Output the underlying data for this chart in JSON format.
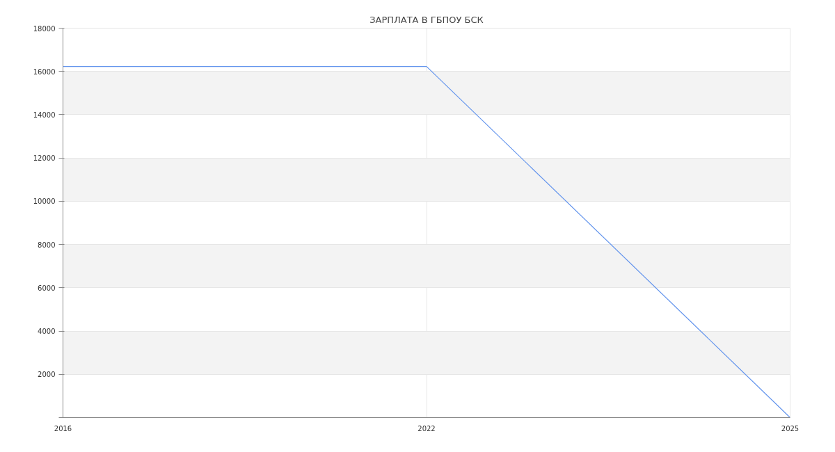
{
  "chart_data": {
    "type": "line",
    "title": "ЗАРПЛАТА В ГБПОУ БСК",
    "categories": [
      "2016",
      "2022",
      "2025"
    ],
    "series": [
      {
        "color": "#6495ed",
        "values": [
          16230,
          16230,
          0
        ]
      }
    ],
    "ylim": [
      0,
      18000
    ],
    "yticks": [
      {
        "value": 0,
        "label": null
      },
      2000,
      4000,
      6000,
      8000,
      10000,
      12000,
      14000,
      16000,
      18000
    ],
    "grid": true,
    "marker": "none",
    "line_style": "solid"
  }
}
